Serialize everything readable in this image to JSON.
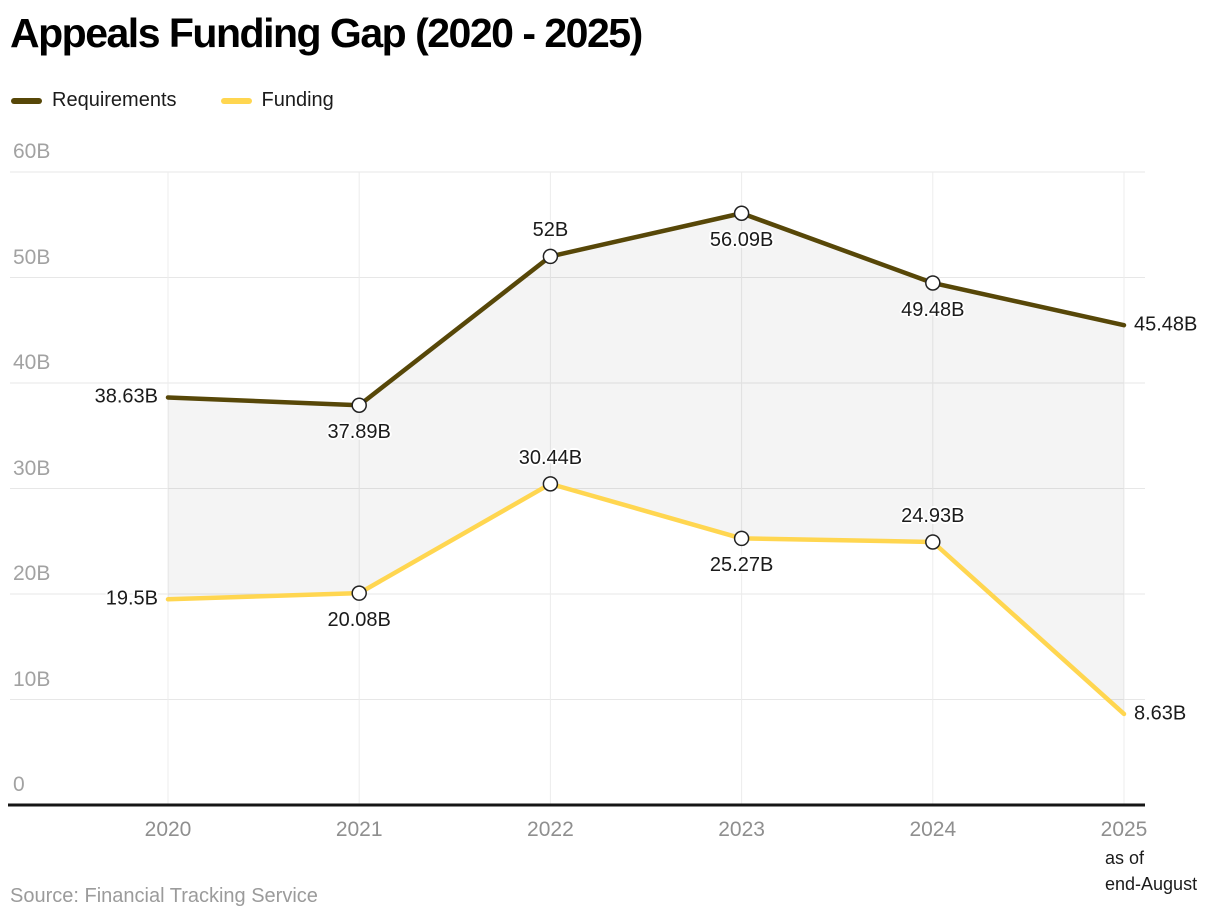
{
  "title": "Appeals Funding Gap (2020 - 2025)",
  "legend": [
    {
      "label": "Requirements",
      "color": "#574708"
    },
    {
      "label": "Funding",
      "color": "#FFD650"
    }
  ],
  "x_axis_note": "as of\nend-August",
  "source": "Source: Financial Tracking Service",
  "chart_data": {
    "type": "line",
    "title": "Appeals Funding Gap (2020 - 2025)",
    "categories": [
      "2020",
      "2021",
      "2022",
      "2023",
      "2024",
      "2025"
    ],
    "series": [
      {
        "name": "Requirements",
        "color": "#574708",
        "values": [
          38.63,
          37.89,
          52,
          56.09,
          49.48,
          45.48
        ],
        "labels": [
          "38.63B",
          "37.89B",
          "52B",
          "56.09B",
          "49.48B",
          "45.48B"
        ],
        "label_placement": [
          "left",
          "below",
          "above",
          "below",
          "below",
          "right"
        ]
      },
      {
        "name": "Funding",
        "color": "#FFD650",
        "values": [
          19.5,
          20.08,
          30.44,
          25.27,
          24.93,
          8.63
        ],
        "labels": [
          "19.5B",
          "20.08B",
          "30.44B",
          "25.27B",
          "24.93B",
          "8.63B"
        ],
        "label_placement": [
          "left",
          "below",
          "above",
          "below",
          "above",
          "right"
        ]
      }
    ],
    "ylim": [
      0,
      60
    ],
    "yticks": [
      0,
      10,
      20,
      30,
      40,
      50,
      60
    ],
    "ytick_labels": [
      "0",
      "10B",
      "20B",
      "30B",
      "40B",
      "50B",
      "60B"
    ],
    "grid": true,
    "legend_position": "top-left",
    "area_fill_between": true,
    "area_color": "rgba(0,0,0,0.045)",
    "grid_color": "#e7e7e7",
    "axis_color": "#161616",
    "marker_indices": [
      1,
      2,
      3,
      4
    ],
    "note_under_category": "2025"
  }
}
